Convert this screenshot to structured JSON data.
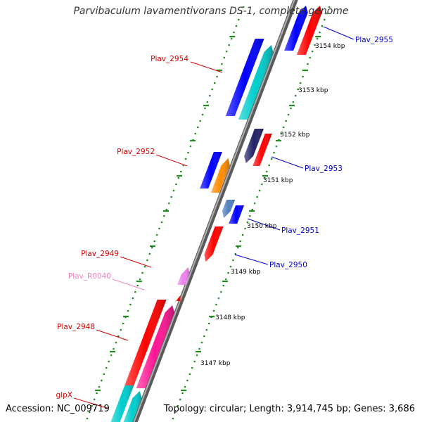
{
  "title": "Parvibaculum lavamentivorans DS-1, complete genome",
  "accession": "Accession: NC_009719",
  "topology": "Topology: circular; Length: 3,914,745 bp; Genes: 3,686",
  "colors": {
    "backbone": "#808080",
    "tick": "#228b22",
    "forward_label": "#d40000",
    "reverse_label": "#0000c8",
    "rna_label": "#ee82c0"
  },
  "ticks": [
    "3154 kbp",
    "3153 kbp",
    "3152 kbp",
    "3151 kbp",
    "3150 kbp",
    "3149 kbp",
    "3148 kbp",
    "3147 kbp"
  ],
  "labels": [
    {
      "text": "Plav_2955",
      "strand": "reverse"
    },
    {
      "text": "Plav_2954",
      "strand": "forward"
    },
    {
      "text": "Plav_2953",
      "strand": "reverse"
    },
    {
      "text": "Plav_2952",
      "strand": "forward"
    },
    {
      "text": "Plav_2951",
      "strand": "reverse"
    },
    {
      "text": "Plav_2950",
      "strand": "reverse"
    },
    {
      "text": "Plav_2949",
      "strand": "forward"
    },
    {
      "text": "Plav_R0040",
      "strand": "rna"
    },
    {
      "text": "Plav_2948",
      "strand": "forward"
    },
    {
      "text": "glpX",
      "strand": "forward"
    }
  ],
  "features": [
    {
      "name": "Plav_2955",
      "track": "reverse",
      "color": "#0000ff"
    },
    {
      "name": "Plav_2954",
      "track": "forward-cds",
      "color": "#ff0000"
    },
    {
      "name": "Plav_2954",
      "track": "forward-gene",
      "color": "#00cccc"
    },
    {
      "name": "Plav_2953",
      "track": "reverse",
      "color": "#0000ff"
    },
    {
      "name": "Plav_2953",
      "track": "reverse-gene",
      "color": "#222266"
    },
    {
      "name": "Plav_2952",
      "track": "forward-cds",
      "color": "#ff0000"
    },
    {
      "name": "Plav_2952",
      "track": "forward-gene",
      "color": "#ff8c00"
    },
    {
      "name": "Plav_2951",
      "track": "reverse",
      "color": "#0000ff"
    },
    {
      "name": "Plav_2951",
      "track": "reverse-gene",
      "color": "#5080c0"
    },
    {
      "name": "Plav_2950",
      "track": "reverse",
      "color": "#0000ff"
    },
    {
      "name": "Plav_2949",
      "track": "forward-cds",
      "color": "#ff0000"
    },
    {
      "name": "Plav_R0040",
      "track": "rna",
      "color": "#ee82ee"
    },
    {
      "name": "Plav_2948",
      "track": "forward-cds",
      "color": "#ff0000"
    },
    {
      "name": "Plav_2948",
      "track": "forward-gene",
      "color": "#ff1493"
    },
    {
      "name": "glpX",
      "track": "forward-cds",
      "color": "#ff0000"
    },
    {
      "name": "glpX",
      "track": "forward-gene",
      "color": "#00cccc"
    }
  ]
}
